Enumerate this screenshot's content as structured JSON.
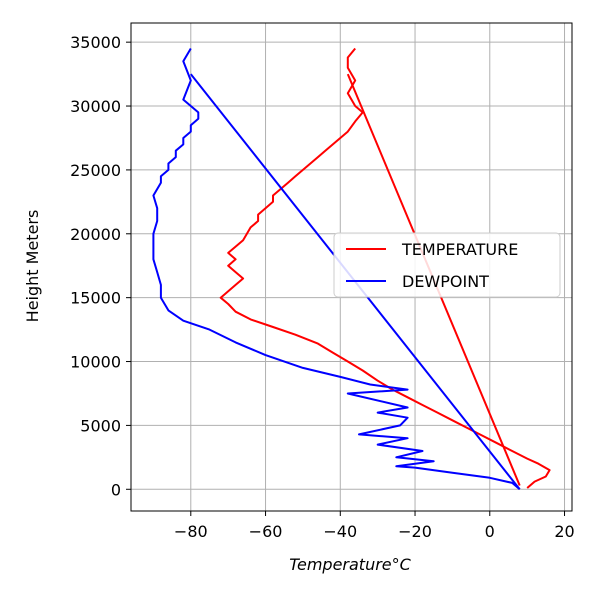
{
  "chart_data": {
    "type": "line",
    "title": "",
    "xlabel": "Temperature",
    "xlabel_unit": "°C",
    "ylabel": "Height Meters",
    "xlim": [
      -96,
      22
    ],
    "ylim": [
      -1700,
      36500
    ],
    "xticks": [
      -80,
      -60,
      -40,
      -20,
      0,
      20
    ],
    "xtick_labels": [
      "−80",
      "−60",
      "−40",
      "−20",
      "0",
      "20"
    ],
    "yticks": [
      0,
      5000,
      10000,
      15000,
      20000,
      25000,
      30000,
      35000
    ],
    "ytick_labels": [
      "0",
      "5000",
      "10000",
      "15000",
      "20000",
      "25000",
      "30000",
      "35000"
    ],
    "grid": true,
    "legend_position": "center-right",
    "series": [
      {
        "name": "TEMPERATURE",
        "color": "#ff0000",
        "x": [
          10,
          12,
          15,
          16,
          13,
          10,
          6,
          2,
          -2,
          -6,
          -10,
          -14,
          -18,
          -22,
          -26,
          -30,
          -34,
          -38,
          -42,
          -46,
          -52,
          -58,
          -64,
          -68,
          -70,
          -72,
          -70,
          -68,
          -66,
          -68,
          -70,
          -68,
          -70,
          -68,
          -66,
          -65,
          -64,
          -62,
          -62,
          -60,
          -58,
          -58,
          -56,
          -54,
          -52,
          -50,
          -48,
          -46,
          -44,
          -42,
          -40,
          -38,
          -36,
          -34,
          -36,
          -38,
          -36,
          -38,
          -38,
          -36
        ],
        "y": [
          100,
          600,
          1000,
          1500,
          2000,
          2400,
          3000,
          3600,
          4200,
          4800,
          5400,
          6000,
          6600,
          7200,
          7800,
          8500,
          9300,
          10000,
          10700,
          11400,
          12100,
          12700,
          13300,
          13900,
          14500,
          15000,
          15500,
          16000,
          16500,
          17000,
          17500,
          18000,
          18500,
          19000,
          19500,
          20000,
          20500,
          21000,
          21500,
          22000,
          22500,
          23000,
          23500,
          24000,
          24500,
          25000,
          25500,
          26000,
          26500,
          27000,
          27500,
          28000,
          28800,
          29500,
          30000,
          31000,
          32000,
          33000,
          33800,
          34500
        ]
      },
      {
        "name": "TEMPERATURE",
        "color": "#ff0000",
        "x": [
          -38,
          8
        ],
        "y": [
          32500,
          300
        ]
      },
      {
        "name": "DEWPOINT",
        "color": "#0000ff",
        "x": [
          8,
          6,
          0,
          -10,
          -20,
          -25,
          -15,
          -25,
          -18,
          -30,
          -22,
          -35,
          -24,
          -22,
          -30,
          -22,
          -38,
          -22,
          -32,
          -40,
          -50,
          -60,
          -68,
          -75,
          -82,
          -86,
          -88,
          -88,
          -89,
          -90,
          -90,
          -90,
          -89,
          -89,
          -90,
          -88,
          -88,
          -86,
          -86,
          -84,
          -84,
          -82,
          -82,
          -80,
          -80,
          -78,
          -78,
          -80,
          -82,
          -80,
          -82,
          -80
        ],
        "y": [
          0,
          500,
          900,
          1300,
          1700,
          1800,
          2200,
          2500,
          3000,
          3500,
          4000,
          4300,
          5000,
          5600,
          6000,
          6400,
          7500,
          7800,
          8200,
          8800,
          9500,
          10500,
          11500,
          12500,
          13200,
          14000,
          15000,
          16000,
          17000,
          18000,
          19000,
          20000,
          21000,
          22000,
          23000,
          24000,
          24500,
          25000,
          25500,
          26000,
          26500,
          27000,
          27500,
          28000,
          28500,
          29000,
          29500,
          30000,
          30500,
          32000,
          33500,
          34500
        ]
      },
      {
        "name": "DEWPOINT",
        "color": "#0000ff",
        "x": [
          -80,
          8
        ],
        "y": [
          32500,
          0
        ]
      }
    ],
    "legend": [
      {
        "label": "TEMPERATURE",
        "color": "#ff0000"
      },
      {
        "label": "DEWPOINT",
        "color": "#0000ff"
      }
    ]
  }
}
